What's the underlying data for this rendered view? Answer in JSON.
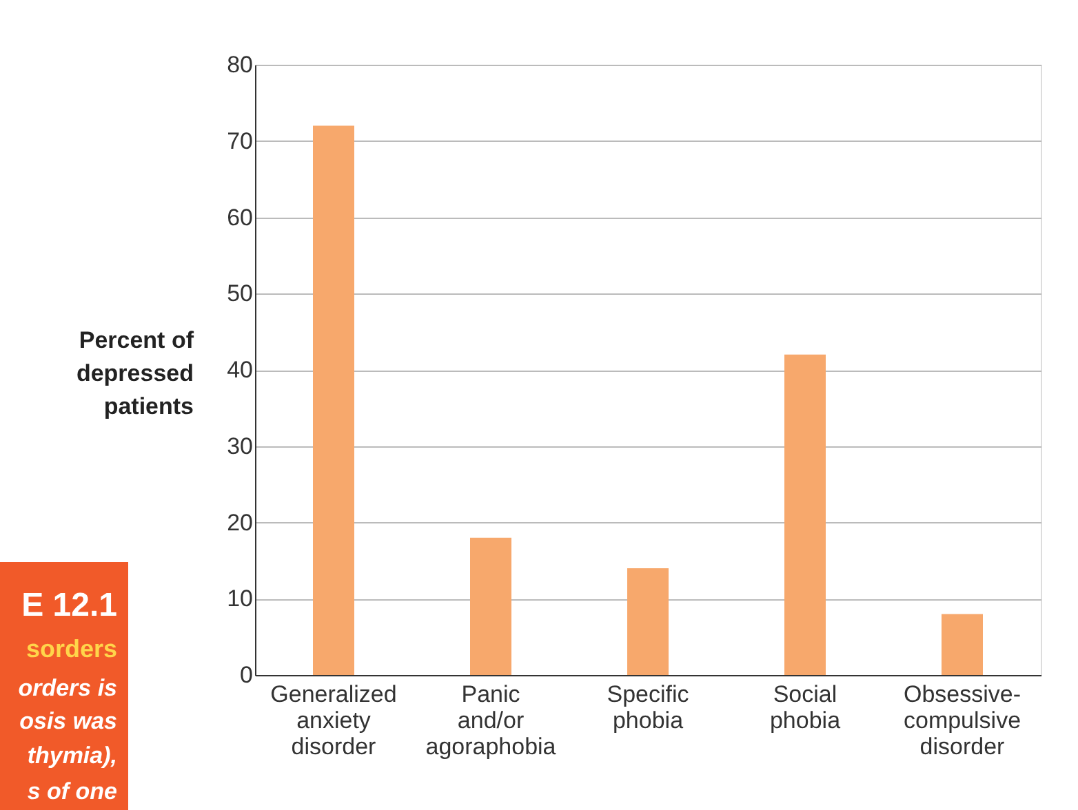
{
  "chart_data": {
    "type": "bar",
    "ylabel": "Percent of\ndepressed\npatients",
    "categories": [
      "Generalized\nanxiety\ndisorder",
      "Panic\nand/or\nagoraphobia",
      "Specific\nphobia",
      "Social\nphobia",
      "Obsessive-\ncompulsive\ndisorder"
    ],
    "values": [
      72,
      18,
      14,
      42,
      8
    ],
    "color": "#f7a86c",
    "ylim": [
      0,
      80
    ],
    "yticks": [
      0,
      10,
      20,
      30,
      40,
      50,
      60,
      70,
      80
    ],
    "grid": "y",
    "annotations": [
      "E 12.1",
      "sorders",
      "orders is",
      "osis was",
      "thymia),",
      "s of one"
    ]
  }
}
